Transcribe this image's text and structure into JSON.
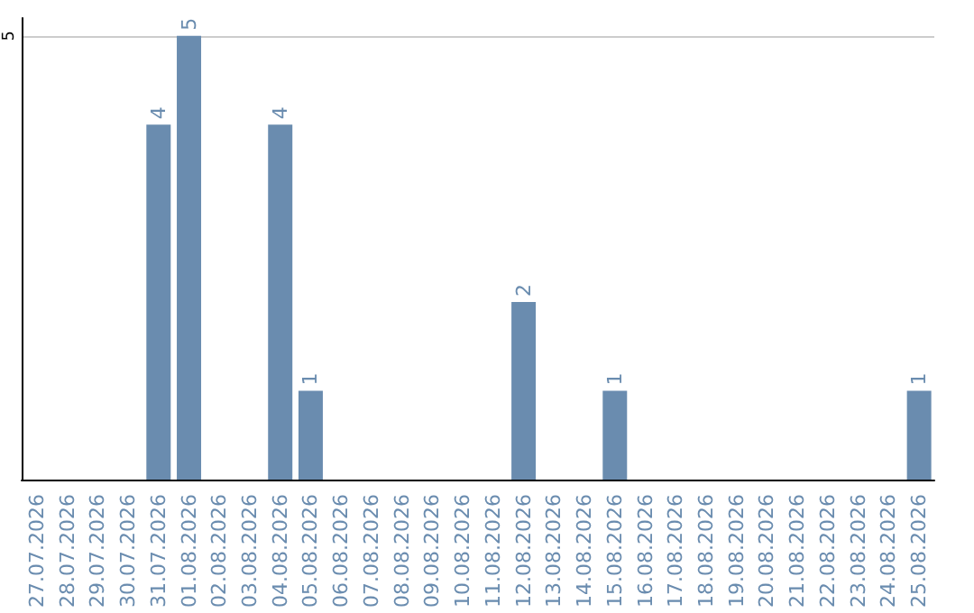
{
  "chart_data": {
    "type": "bar",
    "categories": [
      "27.07.2026",
      "28.07.2026",
      "29.07.2026",
      "30.07.2026",
      "31.07.2026",
      "01.08.2026",
      "02.08.2026",
      "03.08.2026",
      "04.08.2026",
      "05.08.2026",
      "06.08.2026",
      "07.08.2026",
      "08.08.2026",
      "09.08.2026",
      "10.08.2026",
      "11.08.2026",
      "12.08.2026",
      "13.08.2026",
      "14.08.2026",
      "15.08.2026",
      "16.08.2026",
      "17.08.2026",
      "18.08.2026",
      "19.08.2026",
      "20.08.2026",
      "21.08.2026",
      "22.08.2026",
      "23.08.2026",
      "24.08.2026",
      "25.08.2026"
    ],
    "values": [
      0,
      0,
      0,
      0,
      4,
      5,
      0,
      0,
      4,
      1,
      0,
      0,
      0,
      0,
      0,
      0,
      2,
      0,
      0,
      1,
      0,
      0,
      0,
      0,
      0,
      0,
      0,
      0,
      0,
      1
    ],
    "value_labels": [
      null,
      null,
      null,
      null,
      "4",
      "5",
      null,
      null,
      "4",
      "1",
      null,
      null,
      null,
      null,
      null,
      null,
      "2",
      null,
      null,
      "1",
      null,
      null,
      null,
      null,
      null,
      null,
      null,
      null,
      null,
      "1"
    ],
    "color": "#6a8caf",
    "ylim": [
      0,
      5.2
    ],
    "yticks": [
      5
    ],
    "grid": "y"
  }
}
